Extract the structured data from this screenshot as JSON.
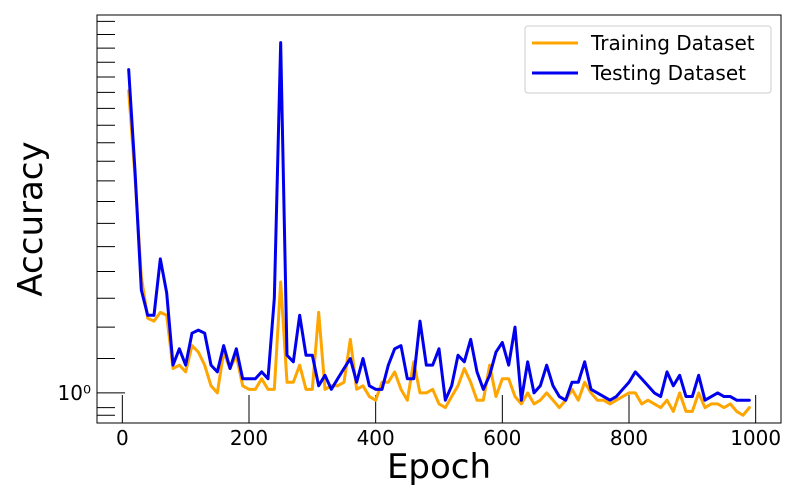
{
  "chart_data": {
    "type": "line",
    "title": "",
    "xlabel": "Epoch",
    "ylabel": "Accuracy",
    "yscale": "log",
    "xlim": [
      -40,
      1040
    ],
    "ylim": [
      0.92,
      2.85
    ],
    "x_ticks": [
      0,
      200,
      400,
      600,
      800,
      1000
    ],
    "x_tick_labels": [
      "0",
      "200",
      "400",
      "600",
      "800",
      "1000"
    ],
    "y_ticks": [
      1.0
    ],
    "y_tick_labels": [
      "10⁰"
    ],
    "y_minor_ticks": [
      0.94,
      0.96,
      1.1,
      1.2,
      1.3,
      1.4,
      1.5,
      1.6,
      1.7,
      1.8,
      1.9,
      2.0,
      2.1,
      2.2,
      2.3,
      2.4,
      2.5,
      2.6,
      2.7,
      2.8
    ],
    "grid": false,
    "legend_position": "top-right",
    "x": [
      10,
      20,
      30,
      40,
      50,
      60,
      70,
      80,
      90,
      100,
      110,
      120,
      130,
      140,
      150,
      160,
      170,
      180,
      190,
      200,
      210,
      220,
      230,
      240,
      250,
      260,
      270,
      280,
      290,
      300,
      310,
      320,
      330,
      340,
      350,
      360,
      370,
      380,
      390,
      400,
      410,
      420,
      430,
      440,
      450,
      460,
      470,
      480,
      490,
      500,
      510,
      520,
      530,
      540,
      550,
      560,
      570,
      580,
      590,
      600,
      610,
      620,
      630,
      640,
      650,
      660,
      670,
      680,
      690,
      700,
      710,
      720,
      730,
      740,
      750,
      760,
      770,
      780,
      790,
      800,
      810,
      820,
      830,
      840,
      850,
      860,
      870,
      880,
      890,
      900,
      910,
      920,
      930,
      940,
      950,
      960,
      970,
      980,
      990
    ],
    "series": [
      {
        "name": "Training Dataset",
        "color": "#FFA500",
        "values": [
          2.31,
          1.82,
          1.38,
          1.23,
          1.22,
          1.25,
          1.24,
          1.07,
          1.08,
          1.06,
          1.14,
          1.12,
          1.08,
          1.02,
          1.0,
          1.12,
          1.07,
          1.11,
          1.02,
          1.01,
          1.01,
          1.04,
          1.01,
          1.01,
          1.36,
          1.03,
          1.03,
          1.08,
          1.01,
          1.01,
          1.25,
          1.01,
          1.02,
          1.02,
          1.03,
          1.16,
          1.01,
          1.02,
          0.99,
          0.98,
          1.03,
          1.03,
          1.06,
          1.01,
          0.98,
          1.09,
          1.0,
          1.0,
          1.01,
          0.97,
          0.96,
          0.99,
          1.02,
          1.07,
          1.03,
          0.98,
          0.98,
          1.08,
          0.99,
          1.04,
          1.04,
          0.99,
          0.97,
          1.0,
          0.97,
          0.98,
          1.0,
          0.98,
          0.96,
          0.98,
          1.01,
          0.98,
          1.03,
          1.0,
          0.98,
          0.98,
          0.97,
          0.98,
          0.99,
          1.0,
          1.0,
          0.97,
          0.98,
          0.97,
          0.96,
          0.98,
          0.95,
          1.0,
          0.95,
          0.95,
          1.0,
          0.96,
          0.97,
          0.97,
          0.96,
          0.97,
          0.95,
          0.94,
          0.96
        ]
      },
      {
        "name": "Testing Dataset",
        "color": "#0000EE",
        "values": [
          2.45,
          1.85,
          1.33,
          1.24,
          1.24,
          1.45,
          1.32,
          1.08,
          1.13,
          1.08,
          1.18,
          1.19,
          1.18,
          1.08,
          1.06,
          1.14,
          1.07,
          1.13,
          1.04,
          1.04,
          1.04,
          1.06,
          1.04,
          1.3,
          2.64,
          1.11,
          1.09,
          1.24,
          1.11,
          1.11,
          1.02,
          1.05,
          1.01,
          1.04,
          1.07,
          1.1,
          1.03,
          1.1,
          1.02,
          1.01,
          1.01,
          1.08,
          1.13,
          1.14,
          1.04,
          1.04,
          1.22,
          1.08,
          1.08,
          1.13,
          0.98,
          1.02,
          1.11,
          1.09,
          1.16,
          1.06,
          1.01,
          1.05,
          1.12,
          1.15,
          1.08,
          1.2,
          0.98,
          1.09,
          1.0,
          1.02,
          1.08,
          1.02,
          0.99,
          0.98,
          1.03,
          1.03,
          1.09,
          1.01,
          1.0,
          0.99,
          0.98,
          0.99,
          1.01,
          1.03,
          1.06,
          1.04,
          1.02,
          1.0,
          0.99,
          1.06,
          1.02,
          1.05,
          0.99,
          0.99,
          1.05,
          0.98,
          0.99,
          1.0,
          0.99,
          0.99,
          0.98,
          0.98,
          0.98
        ]
      }
    ]
  }
}
